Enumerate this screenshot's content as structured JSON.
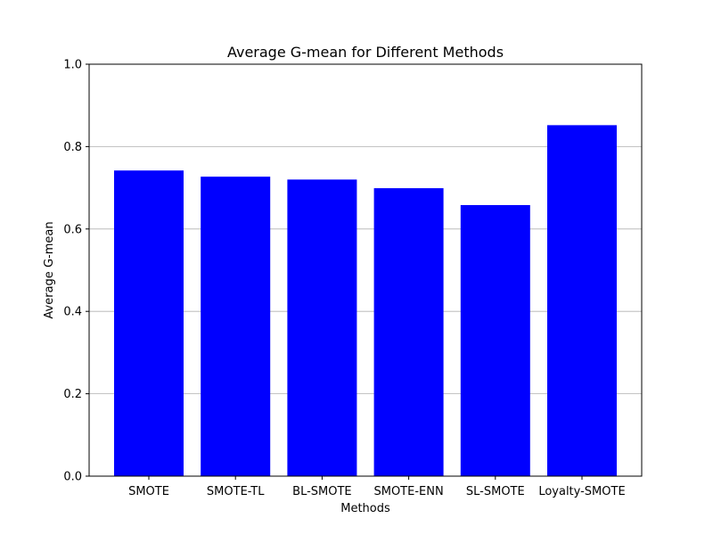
{
  "chart_data": {
    "type": "bar",
    "title": "Average G-mean for Different Methods",
    "xlabel": "Methods",
    "ylabel": "Average G-mean",
    "categories": [
      "SMOTE",
      "SMOTE-TL",
      "BL-SMOTE",
      "SMOTE-ENN",
      "SL-SMOTE",
      "Loyalty-SMOTE"
    ],
    "values": [
      0.742,
      0.727,
      0.72,
      0.699,
      0.658,
      0.852
    ],
    "ylim": [
      0,
      1.0
    ],
    "yticks": [
      "0.0",
      "0.2",
      "0.4",
      "0.6",
      "0.8",
      "1.0"
    ],
    "grid": "y-axis only",
    "legend": "none",
    "bar_color": "#0000ff"
  }
}
